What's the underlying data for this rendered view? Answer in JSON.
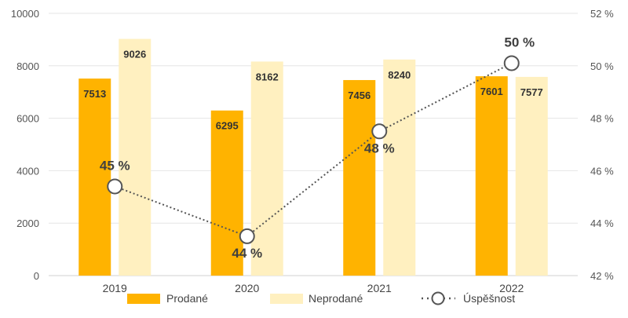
{
  "chart_data": {
    "type": "bar",
    "categories": [
      "2019",
      "2020",
      "2021",
      "2022"
    ],
    "series": [
      {
        "name": "Prodané",
        "type": "bar",
        "axis": "left",
        "color": "#FFB300",
        "values": [
          7513,
          6295,
          7456,
          7601
        ]
      },
      {
        "name": "Neprodané",
        "type": "bar",
        "axis": "left",
        "color": "#FFF0C0",
        "values": [
          9026,
          8162,
          8240,
          7577
        ]
      },
      {
        "name": "Úspěšnost",
        "type": "line",
        "axis": "right",
        "color": "#555555",
        "marker": "circle",
        "dashed": true,
        "values": [
          45.4,
          43.5,
          47.5,
          50.1
        ],
        "labels": [
          "45 %",
          "44 %",
          "48 %",
          "50 %"
        ]
      }
    ],
    "yleft": {
      "min": 0,
      "max": 10000,
      "ticks": [
        0,
        2000,
        4000,
        6000,
        8000,
        10000
      ]
    },
    "yright": {
      "min": 42,
      "max": 52,
      "ticks": [
        "42 %",
        "44 %",
        "46 %",
        "48 %",
        "50 %",
        "52 %"
      ],
      "tick_values": [
        42,
        44,
        46,
        48,
        50,
        52
      ]
    },
    "grid": true,
    "legend": {
      "position": "bottom",
      "items": [
        "Prodané",
        "Neprodané",
        "Úspěšnost"
      ]
    }
  }
}
